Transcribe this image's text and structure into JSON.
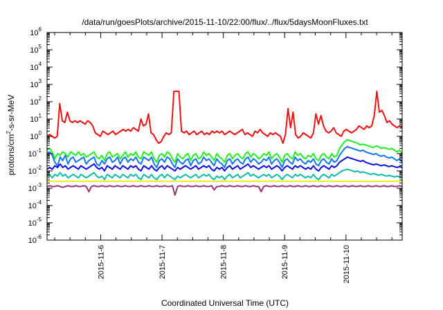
{
  "chart_data": {
    "type": "line",
    "title": "/data/run/goesPlots/archive/2015-11-10/22:00/flux/../flux/5daysMoonFluxes.txt",
    "xlabel": "Coordinated Universal Time (UTC)",
    "ylabel_parts": [
      "protons/cm",
      "2",
      "-s-sr-MeV"
    ],
    "y_scale": "log",
    "ylim_exp": [
      -6,
      6
    ],
    "y_tick_base": "10",
    "y_tick_exponents": [
      "-6",
      "-5",
      "-4",
      "-3",
      "-2",
      "-1",
      "0",
      "1",
      "2",
      "3",
      "4",
      "5",
      "6"
    ],
    "x_range": [
      "2015-11-05 03:00",
      "2015-11-10 22:00"
    ],
    "x_tick_labels": [
      "2015-11-6",
      "2015-11-7",
      "2015-11-8",
      "2015-11-9",
      "2015-11-10"
    ],
    "x_tick_days": [
      1,
      2,
      3,
      4,
      5
    ],
    "x_start_day": 0.125,
    "x_end_day": 5.9167,
    "grid": false,
    "series": [
      {
        "color": "#ee1111",
        "log_values": [
          0.0,
          0.1,
          0.0,
          -0.1,
          0.0,
          1.9,
          0.9,
          0.8,
          1.4,
          0.9,
          0.8,
          0.9,
          0.8,
          0.9,
          0.8,
          0.7,
          0.9,
          0.8,
          0.6,
          0.2,
          0.1,
          0.0,
          0.3,
          0.2,
          0.1,
          0.2,
          0.3,
          0.1,
          0.2,
          0.3,
          0.4,
          0.3,
          0.4,
          0.3,
          0.5,
          0.4,
          0.3,
          1.0,
          0.6,
          0.7,
          1.3,
          0.2,
          0.1,
          -0.2,
          -0.4,
          -0.3,
          0.0,
          0.2,
          0.1,
          0.2,
          2.6,
          2.6,
          2.6,
          0.3,
          0.2,
          0.3,
          0.1,
          0.2,
          0.3,
          0.1,
          0.2,
          0.3,
          0.1,
          0.2,
          0.1,
          0.3,
          0.2,
          0.3,
          0.2,
          0.3,
          0.1,
          0.2,
          0.3,
          0.2,
          0.1,
          0.2,
          0.3,
          0.4,
          0.1,
          0.2,
          0.1,
          0.0,
          0.3,
          0.2,
          0.4,
          0.2,
          0.1,
          0.0,
          0.2,
          0.1,
          0.2,
          0.1,
          0.0,
          -0.4,
          0.1,
          1.6,
          0.5,
          1.4,
          0.1,
          -0.1,
          0.0,
          0.2,
          0.1,
          0.0,
          -0.1,
          0.2,
          1.3,
          0.7,
          1.2,
          0.6,
          0.3,
          0.2,
          0.3,
          0.5,
          0.2,
          0.1,
          0.0,
          0.3,
          0.4,
          0.3,
          0.2,
          0.3,
          0.4,
          0.6,
          0.5,
          0.4,
          0.6,
          0.5,
          0.6,
          1.2,
          2.6,
          1.4,
          1.5,
          1.2,
          0.8,
          0.9,
          0.7,
          0.6,
          0.5,
          0.6,
          0.5
        ]
      },
      {
        "color": "#22ee22",
        "log_values": [
          -0.8,
          -0.7,
          -0.9,
          -1.3,
          -1.0,
          -1.1,
          -0.9,
          -1.0,
          -1.2,
          -0.9,
          -1.0,
          -1.1,
          -0.9,
          -1.1,
          -1.0,
          -1.2,
          -1.1,
          -1.0,
          -0.9,
          -1.2,
          -1.3,
          -1.1,
          -1.4,
          -1.0,
          -0.9,
          -1.2,
          -1.1,
          -1.0,
          -1.3,
          -1.1,
          -0.9,
          -1.2,
          -1.0,
          -1.1,
          -0.9,
          -1.2,
          -1.3,
          -0.9,
          -1.0,
          -1.1,
          -0.9,
          -1.3,
          -1.5,
          -1.1,
          -1.0,
          -1.2,
          -0.9,
          -1.0,
          -1.3,
          -1.5,
          -1.0,
          -1.2,
          -1.3,
          -1.1,
          -1.0,
          -1.4,
          -1.1,
          -1.0,
          -1.3,
          -1.2,
          -0.9,
          -1.1,
          -1.0,
          -1.2,
          -1.4,
          -1.0,
          -1.2,
          -1.3,
          -1.5,
          -1.1,
          -1.0,
          -1.3,
          -1.1,
          -1.0,
          -1.2,
          -1.3,
          -1.0,
          -0.9,
          -1.2,
          -1.0,
          -1.1,
          -1.3,
          -1.2,
          -1.0,
          -1.1,
          -0.9,
          -1.3,
          -1.1,
          -1.0,
          -1.2,
          -1.5,
          -1.1,
          -1.0,
          -1.2,
          -1.3,
          -0.9,
          -1.1,
          -1.0,
          -1.2,
          -1.3,
          -1.1,
          -1.2,
          -1.0,
          -1.3,
          -1.4,
          -1.1,
          -1.0,
          -1.2,
          -1.3,
          -1.0,
          -1.2,
          -1.1,
          -0.7,
          -0.5,
          -0.3,
          -0.2,
          -0.25,
          -0.3,
          -0.35,
          -0.4,
          -0.5,
          -0.45,
          -0.5,
          -0.55,
          -0.6,
          -0.65,
          -0.55,
          -0.6,
          -0.7,
          -0.65,
          -0.7,
          -0.75,
          -0.7,
          -0.8,
          -0.9,
          -0.8,
          -1.0
        ]
      },
      {
        "color": "#1177ee",
        "log_values": [
          -1.0,
          -0.9,
          -1.1,
          -1.5,
          -1.7,
          -1.2,
          -1.4,
          -1.1,
          -1.6,
          -1.3,
          -1.2,
          -1.5,
          -1.4,
          -1.3,
          -1.2,
          -1.6,
          -1.4,
          -1.3,
          -1.2,
          -1.6,
          -1.7,
          -1.4,
          -1.6,
          -1.3,
          -1.2,
          -1.5,
          -1.4,
          -1.2,
          -1.6,
          -1.3,
          -1.2,
          -1.5,
          -1.3,
          -1.4,
          -1.2,
          -1.5,
          -1.6,
          -1.2,
          -1.3,
          -1.4,
          -1.2,
          -1.6,
          -1.8,
          -1.4,
          -1.3,
          -1.5,
          -1.2,
          -1.3,
          -1.6,
          -1.8,
          -1.3,
          -1.5,
          -1.6,
          -1.4,
          -1.3,
          -1.7,
          -1.4,
          -1.3,
          -1.6,
          -1.5,
          -1.2,
          -1.4,
          -1.3,
          -1.5,
          -1.7,
          -1.3,
          -1.5,
          -1.6,
          -1.8,
          -1.4,
          -1.3,
          -1.6,
          -1.4,
          -1.3,
          -1.5,
          -1.6,
          -1.3,
          -1.2,
          -1.5,
          -1.3,
          -1.4,
          -1.6,
          -1.5,
          -1.3,
          -1.4,
          -1.2,
          -1.6,
          -1.4,
          -1.3,
          -1.5,
          -1.8,
          -1.4,
          -1.3,
          -1.5,
          -1.6,
          -1.2,
          -1.4,
          -1.3,
          -1.5,
          -1.6,
          -1.4,
          -1.5,
          -1.3,
          -1.6,
          -1.7,
          -1.4,
          -1.3,
          -1.5,
          -1.6,
          -1.3,
          -1.5,
          -1.4,
          -1.1,
          -0.9,
          -0.7,
          -0.6,
          -0.65,
          -0.7,
          -0.75,
          -0.8,
          -0.85,
          -0.8,
          -0.9,
          -0.95,
          -1.0,
          -1.05,
          -1.0,
          -1.1,
          -1.15,
          -1.1,
          -1.2,
          -1.25,
          -1.2,
          -1.3,
          -1.4,
          -1.3,
          -1.5
        ]
      },
      {
        "color": "#1111dd",
        "log_values": [
          -1.9,
          -1.8,
          -1.9,
          -1.7,
          -1.8,
          -1.6,
          -1.8,
          -1.7,
          -1.9,
          -1.8,
          -1.7,
          -1.8,
          -1.9,
          -1.7,
          -1.8,
          -1.9,
          -1.8,
          -1.7,
          -1.6,
          -1.8,
          -1.9,
          -1.8,
          -2.0,
          -1.7,
          -1.8,
          -1.9,
          -1.7,
          -1.8,
          -1.9,
          -1.7,
          -1.8,
          -1.9,
          -1.7,
          -1.8,
          -1.7,
          -1.9,
          -2.0,
          -1.7,
          -1.8,
          -1.9,
          -1.7,
          -1.9,
          -2.0,
          -1.8,
          -1.7,
          -1.9,
          -1.7,
          -1.8,
          -1.9,
          -2.0,
          -1.8,
          -1.9,
          -1.8,
          -1.7,
          -1.8,
          -1.9,
          -1.8,
          -1.7,
          -1.9,
          -1.8,
          -1.7,
          -1.8,
          -1.7,
          -1.9,
          -2.0,
          -1.8,
          -1.9,
          -1.8,
          -2.0,
          -1.8,
          -1.7,
          -1.9,
          -1.8,
          -1.7,
          -1.9,
          -1.8,
          -1.7,
          -1.6,
          -1.8,
          -1.7,
          -1.8,
          -1.9,
          -1.8,
          -1.7,
          -1.8,
          -1.7,
          -1.9,
          -1.8,
          -1.7,
          -1.8,
          -2.0,
          -1.8,
          -1.7,
          -1.8,
          -1.9,
          -1.7,
          -1.8,
          -1.7,
          -1.8,
          -1.9,
          -1.8,
          -1.9,
          -1.7,
          -1.9,
          -2.0,
          -1.8,
          -1.7,
          -1.8,
          -1.9,
          -1.7,
          -1.8,
          -1.7,
          -1.5,
          -1.4,
          -1.3,
          -1.2,
          -1.25,
          -1.3,
          -1.35,
          -1.4,
          -1.45,
          -1.4,
          -1.5,
          -1.55,
          -1.6,
          -1.65,
          -1.6,
          -1.65,
          -1.7,
          -1.65,
          -1.7,
          -1.75,
          -1.7,
          -1.75,
          -1.8,
          -1.75,
          -1.8
        ]
      },
      {
        "color": "#11bbaa",
        "log_values": [
          -2.3,
          -2.2,
          -2.4,
          -2.2,
          -2.3,
          -2.1,
          -2.3,
          -2.2,
          -2.4,
          -2.3,
          -2.2,
          -2.3,
          -2.4,
          -2.2,
          -2.3,
          -2.4,
          -2.3,
          -2.2,
          -2.1,
          -2.3,
          -2.4,
          -2.3,
          -2.5,
          -2.2,
          -2.3,
          -2.4,
          -2.2,
          -2.3,
          -2.4,
          -2.2,
          -2.3,
          -2.4,
          -2.2,
          -2.3,
          -2.2,
          -2.4,
          -2.5,
          -2.2,
          -2.3,
          -2.4,
          -2.2,
          -2.4,
          -2.5,
          -2.3,
          -2.2,
          -2.4,
          -2.2,
          -2.3,
          -2.4,
          -2.5,
          -2.3,
          -2.4,
          -2.3,
          -2.2,
          -2.3,
          -2.4,
          -2.3,
          -2.2,
          -2.4,
          -2.3,
          -2.2,
          -2.3,
          -2.2,
          -2.4,
          -2.5,
          -2.3,
          -2.4,
          -2.3,
          -2.5,
          -2.3,
          -2.2,
          -2.4,
          -2.3,
          -2.2,
          -2.4,
          -2.3,
          -2.2,
          -2.1,
          -2.3,
          -2.2,
          -2.3,
          -2.4,
          -2.3,
          -2.2,
          -2.3,
          -2.2,
          -2.4,
          -2.3,
          -2.2,
          -2.3,
          -2.5,
          -2.3,
          -2.2,
          -2.3,
          -2.4,
          -2.2,
          -2.3,
          -2.2,
          -2.3,
          -2.4,
          -2.3,
          -2.4,
          -2.2,
          -2.4,
          -2.5,
          -2.3,
          -2.2,
          -2.3,
          -2.4,
          -2.2,
          -2.3,
          -2.2,
          -2.1,
          -2.0,
          -1.95,
          -1.9,
          -1.95,
          -2.0,
          -2.05,
          -2.0,
          -2.1,
          -2.05,
          -2.1,
          -2.15,
          -2.2,
          -2.15,
          -2.2,
          -2.25,
          -2.2,
          -2.25,
          -2.3,
          -2.25,
          -2.3,
          -2.35,
          -2.3,
          -2.35,
          -2.4
        ]
      },
      {
        "color": "#eeee22",
        "log_values": [
          -2.6,
          -2.6,
          -2.6,
          -2.6,
          -2.6,
          -2.6,
          -2.6,
          -2.6,
          -2.6,
          -2.6,
          -2.6,
          -2.6,
          -2.6,
          -2.6,
          -2.6,
          -2.6,
          -2.6,
          -2.6,
          -2.6,
          -2.6,
          -2.6,
          -2.6,
          -2.6,
          -2.6,
          -2.6,
          -2.6,
          -2.6,
          -2.6,
          -2.6,
          -2.6,
          -2.6,
          -2.6,
          -2.6,
          -2.6,
          -2.6,
          -2.6,
          -2.6,
          -2.6,
          -2.6,
          -2.6,
          -2.6,
          -2.6,
          -2.6,
          -2.6,
          -2.6,
          -2.6,
          -2.6,
          -2.6,
          -2.6,
          -2.6,
          -2.6,
          -2.6,
          -2.6,
          -2.6,
          -2.6,
          -2.6,
          -2.6,
          -2.6,
          -2.6,
          -2.6,
          -2.6,
          -2.6,
          -2.6,
          -2.6,
          -2.6,
          -2.6,
          -2.6,
          -2.6,
          -2.6,
          -2.6,
          -2.6,
          -2.6,
          -2.6,
          -2.6,
          -2.6,
          -2.6,
          -2.6,
          -2.6,
          -2.6,
          -2.6,
          -2.6,
          -2.6,
          -2.6,
          -2.6,
          -2.6,
          -2.6,
          -2.6,
          -2.6,
          -2.6,
          -2.6,
          -2.6,
          -2.6,
          -2.6,
          -2.6,
          -2.6,
          -2.6,
          -2.6,
          -2.6,
          -2.6,
          -2.6,
          -2.6,
          -2.6,
          -2.6,
          -2.6,
          -2.6,
          -2.6,
          -2.6,
          -2.6,
          -2.6,
          -2.6,
          -2.6,
          -2.6,
          -2.6,
          -2.6,
          -2.6,
          -2.6,
          -2.6,
          -2.6,
          -2.6,
          -2.6,
          -2.6,
          -2.6,
          -2.6,
          -2.6,
          -2.6,
          -2.6,
          -2.6,
          -2.6,
          -2.6,
          -2.6,
          -2.6,
          -2.6,
          -2.6,
          -2.6,
          -2.6,
          -2.6,
          -2.6
        ]
      },
      {
        "color": "#993377",
        "log_values": [
          -2.9,
          -2.85,
          -2.9,
          -2.9,
          -2.85,
          -2.9,
          -2.95,
          -2.9,
          -2.85,
          -2.9,
          -2.9,
          -2.85,
          -2.9,
          -2.9,
          -2.85,
          -2.9,
          -3.2,
          -2.9,
          -2.85,
          -2.9,
          -2.9,
          -2.85,
          -2.9,
          -2.9,
          -2.85,
          -2.9,
          -2.9,
          -2.85,
          -2.9,
          -2.9,
          -2.85,
          -2.9,
          -2.9,
          -2.85,
          -2.9,
          -2.9,
          -2.85,
          -2.9,
          -2.9,
          -2.85,
          -2.9,
          -2.9,
          -2.85,
          -2.9,
          -2.9,
          -2.85,
          -2.9,
          -2.9,
          -2.85,
          -3.4,
          -2.9,
          -2.85,
          -2.9,
          -2.9,
          -2.85,
          -2.9,
          -2.9,
          -2.85,
          -2.9,
          -2.9,
          -2.85,
          -2.9,
          -2.9,
          -2.85,
          -3.1,
          -2.9,
          -2.9,
          -2.85,
          -2.9,
          -2.9,
          -2.85,
          -2.9,
          -2.9,
          -2.85,
          -2.9,
          -2.9,
          -2.85,
          -2.9,
          -2.9,
          -2.85,
          -2.9,
          -2.9,
          -3.2,
          -2.9,
          -2.85,
          -2.9,
          -2.9,
          -2.85,
          -2.9,
          -2.9,
          -2.85,
          -2.9,
          -2.9,
          -2.85,
          -2.9,
          -2.9,
          -2.85,
          -2.9,
          -2.9,
          -2.85,
          -2.9,
          -2.9,
          -2.85,
          -2.9,
          -2.9,
          -2.85,
          -2.9,
          -2.9,
          -2.85,
          -2.9,
          -2.9,
          -2.85,
          -2.9,
          -2.9,
          -2.85,
          -2.9,
          -2.9,
          -2.85,
          -2.9,
          -2.9,
          -2.85,
          -2.9,
          -2.9,
          -2.85,
          -2.9,
          -2.9,
          -2.85,
          -2.9,
          -2.9,
          -2.85,
          -2.9,
          -2.9,
          -2.85,
          -2.9,
          -2.9,
          -2.85,
          -2.9
        ]
      }
    ]
  }
}
